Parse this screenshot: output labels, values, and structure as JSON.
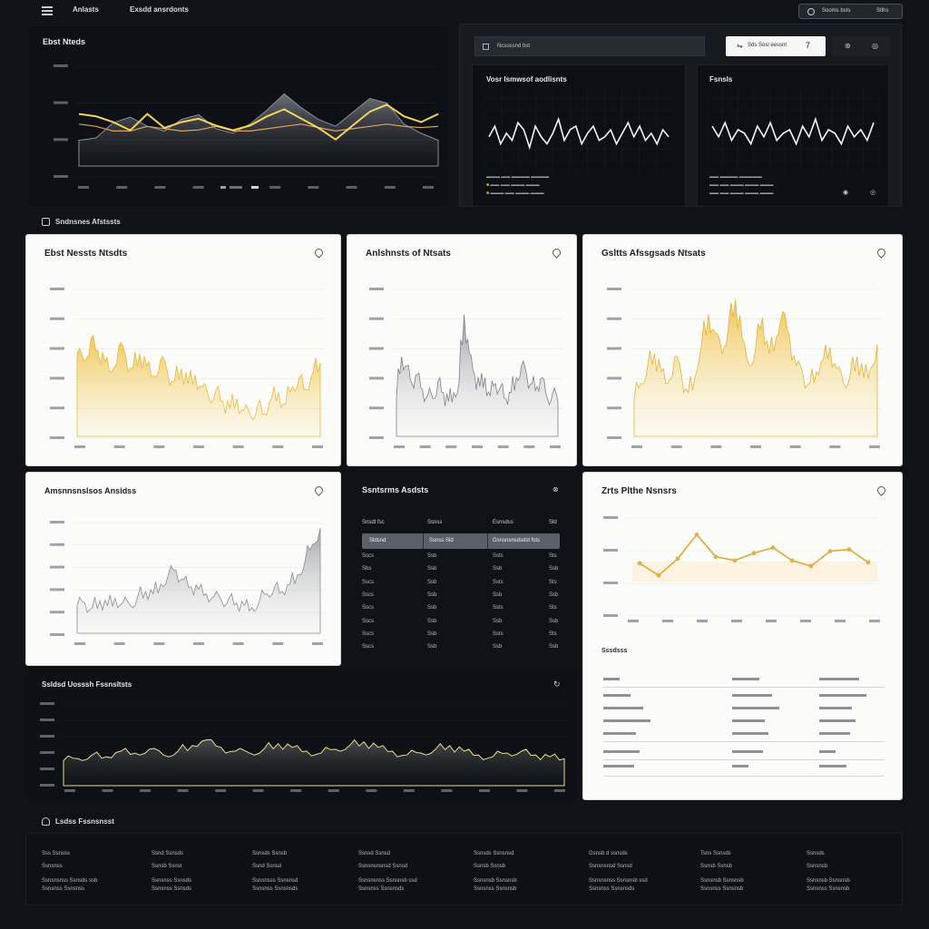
{
  "topbar": {
    "menu_icon": "hamburger-icon",
    "nav_1": "Anlasts",
    "nav_2": "Exsdd ansrdonts",
    "account_icon": "user-icon",
    "account_name": "Sooms bsts",
    "account_meta": "Stlhs"
  },
  "top_chart": {
    "title": "Ebst Nteds"
  },
  "right_top": {
    "search_placeholder": "Ncsossnd bst",
    "filter_label": "Sds Sosl eessnt",
    "filter_count": "7",
    "panel_a_title": "Vosr Ismwsof aodlisnts",
    "panel_b_title": "Fsnsls"
  },
  "section_label": "Sndnsnes Afstssts",
  "cards": {
    "c1_title": "Ebst Nessts Ntsdts",
    "c2_title": "Anlshnsts of Ntsats",
    "c3_title": "Gsltts Afssgsads Ntsats",
    "c4_title": "Amsnnsnslsos Ansidss",
    "c5_title": "Ssntsrms Asdsts",
    "c6_title": "Zrts Plthe Nsnsrs",
    "c6_sub": "Sssdsss"
  },
  "table": {
    "headers": [
      "Snsdt fsc",
      "Ssnss",
      "Esnsdss",
      "Sld"
    ],
    "selected": [
      "Sldsnd",
      "Ssnss Sld",
      "Gsnsnsnsdsdst fsts"
    ],
    "rows": [
      [
        "Sscs",
        "Ssb",
        "Ssts",
        "Sts"
      ],
      [
        "Sbs",
        "Ssb",
        "Ssb",
        "Ssb"
      ],
      [
        "Sscs",
        "Ssb",
        "Ssts",
        "Sts"
      ],
      [
        "Sscs",
        "Ssb",
        "Ssb",
        "Ssb"
      ],
      [
        "Sscs",
        "Ssb",
        "Ssts",
        "Sts"
      ],
      [
        "Sscs",
        "Ssb",
        "Ssb",
        "Ssb"
      ],
      [
        "Sscs",
        "Ssb",
        "Ssts",
        "Sts"
      ],
      [
        "Sscs",
        "Ssb",
        "Ssb",
        "Ssb"
      ]
    ]
  },
  "bottom_chart": {
    "title": "Ssldsd Uosssh Fssnsltsts"
  },
  "footer": {
    "title": "Lsdss Fssnsnsst",
    "cols": [
      [
        "Sss Ssnsss",
        "Ssnsnss",
        "Ssnsnsnss Ssnsds ssb",
        "Ssnsnss Ssnsnss"
      ],
      [
        "Ssnd Ssnsds",
        "Ssnsb Ssnst",
        "Ssnsnss Ssnsds",
        "Ssnsnss Ssnsds"
      ],
      [
        "Ssnsds Ssnsb",
        "Ssnd Ssnsd",
        "Ssnsnsss Ssnsnsd",
        "Ssnsnss Ssnsnsds"
      ],
      [
        "Ssnsd Ssnsd",
        "Ssnsnsnsnsd Ssnsd",
        "Ssnsnsnss Ssnsnsb ssd",
        "Ssnsnss Ssnsnsds"
      ],
      [
        "Ssnsds Ssnsnsd",
        "Ssnsb Ssnsb",
        "Ssnsnsb Ssnsnsb",
        "Ssnsnss Ssnsnsb"
      ],
      [
        "Gsnsb d ssnsds",
        "Ssnsnsnsd Ssnsd",
        "Ssnsnsnss Ssnsnsb ssd",
        "Ssnsnss Ssnsnsds"
      ],
      [
        "Tsns Ssnsds",
        "Ssnsb Ssnsb",
        "Ssnsnsb Ssnsnsb",
        "Ssnsnss Ssnsnsb"
      ],
      [
        "Ssnsds",
        "Ssnsnsb",
        "Ssnsnsb Ssnsnsb",
        "Ssnsnss Ssnsnsb"
      ]
    ]
  },
  "colors": {
    "accent_yellow": "#f2c94c",
    "accent_orange": "#e0a15a",
    "gold_line": "#e3b043",
    "grey_fill": "#9a9ea4",
    "bg": "#0f1216"
  },
  "chart_data": [
    {
      "type": "line",
      "series": [
        {
          "values": [
            62,
            60,
            55,
            48,
            62,
            50,
            55,
            58,
            52,
            48,
            52,
            60,
            66,
            58,
            50,
            40,
            52,
            64,
            70,
            60,
            55,
            62
          ]
        },
        {
          "values": [
            58,
            56,
            52,
            52,
            56,
            54,
            52,
            53,
            56,
            52,
            52,
            54,
            56,
            58,
            55,
            52,
            54,
            56,
            58,
            56,
            55,
            56
          ]
        },
        {
          "values": [
            30,
            32,
            45,
            50,
            42,
            38,
            48,
            52,
            40,
            36,
            44,
            56,
            70,
            58,
            48,
            42,
            54,
            66,
            62,
            44,
            36,
            30
          ]
        }
      ]
    },
    {
      "type": "line",
      "series": [
        {
          "values": [
            40,
            55,
            30,
            45,
            35,
            60,
            50,
            25,
            55,
            40,
            30,
            45,
            65,
            35,
            50,
            55,
            30,
            45,
            55,
            35,
            40,
            50,
            30,
            45,
            60,
            40,
            55,
            35,
            45,
            30,
            50,
            40
          ]
        }
      ]
    },
    {
      "type": "line",
      "series": [
        {
          "values": [
            55,
            40,
            60,
            35,
            50,
            45,
            30,
            55,
            40,
            60,
            35,
            45,
            50,
            30,
            55,
            40,
            65,
            35,
            50,
            45,
            30,
            55,
            40,
            50,
            35,
            60
          ]
        }
      ]
    },
    {
      "type": "area",
      "series": [
        {
          "values": [
            60,
            55,
            70,
            62,
            55,
            48,
            65,
            58,
            50,
            60,
            52,
            45,
            56,
            48,
            42,
            50,
            40,
            46,
            38,
            30,
            36,
            28,
            24,
            30,
            22,
            18,
            26,
            20,
            30,
            34,
            26,
            38,
            44,
            36,
            48,
            54
          ]
        }
      ]
    },
    {
      "type": "area",
      "series": [
        {
          "values": [
            30,
            58,
            52,
            40,
            46,
            36,
            32,
            30,
            42,
            34,
            28,
            34,
            40,
            86,
            60,
            46,
            38,
            44,
            32,
            40,
            38,
            30,
            34,
            44,
            52,
            46,
            40,
            38,
            44,
            30,
            34,
            28
          ]
        }
      ]
    },
    {
      "type": "area",
      "series": [
        {
          "values": [
            30,
            40,
            52,
            60,
            48,
            40,
            58,
            46,
            34,
            44,
            66,
            86,
            74,
            60,
            80,
            96,
            70,
            52,
            64,
            84,
            60,
            70,
            88,
            72,
            52,
            46,
            40,
            48,
            56,
            64,
            50,
            40,
            46,
            58,
            44,
            50,
            66
          ]
        }
      ]
    },
    {
      "type": "area",
      "series": [
        {
          "values": [
            30,
            32,
            28,
            34,
            30,
            36,
            32,
            30,
            38,
            42,
            40,
            48,
            56,
            60,
            52,
            46,
            44,
            40,
            38,
            34,
            36,
            32,
            30,
            28,
            34,
            40,
            46,
            42,
            48,
            56,
            68,
            82,
            96
          ]
        }
      ]
    },
    {
      "type": "line",
      "series": [
        {
          "values": [
            55,
            42,
            60,
            86,
            62,
            58,
            66,
            72,
            58,
            52,
            68,
            70,
            56
          ]
        }
      ]
    },
    {
      "type": "area",
      "series": [
        {
          "values": [
            40,
            42,
            46,
            44,
            50,
            48,
            52,
            46,
            50,
            56,
            62,
            54,
            50,
            48,
            52,
            58,
            54,
            50,
            48,
            52,
            56,
            60,
            54,
            50,
            46,
            48,
            52,
            56,
            50,
            46,
            44,
            48,
            50,
            46,
            44,
            42
          ]
        }
      ]
    }
  ]
}
